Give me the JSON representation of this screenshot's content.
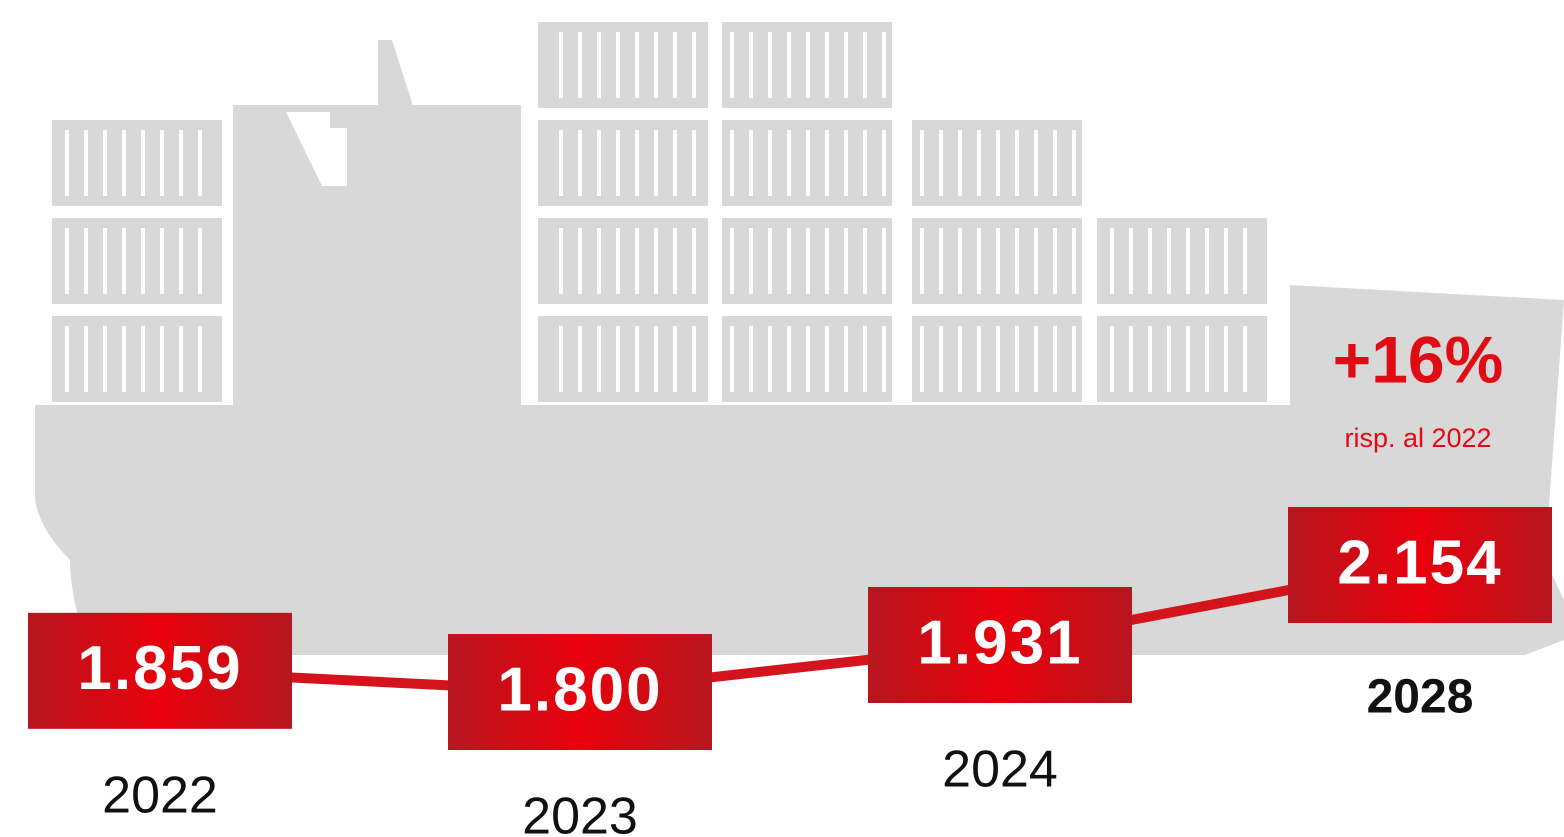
{
  "chart_data": {
    "type": "line",
    "categories": [
      "2022",
      "2023",
      "2024",
      "2028"
    ],
    "values": [
      1859,
      1800,
      1931,
      2154
    ],
    "value_labels": [
      "1.859",
      "1.800",
      "1.931",
      "2.154"
    ],
    "color": "#d4141c",
    "annotations": [
      "+16%",
      "risp. al 2022"
    ]
  }
}
